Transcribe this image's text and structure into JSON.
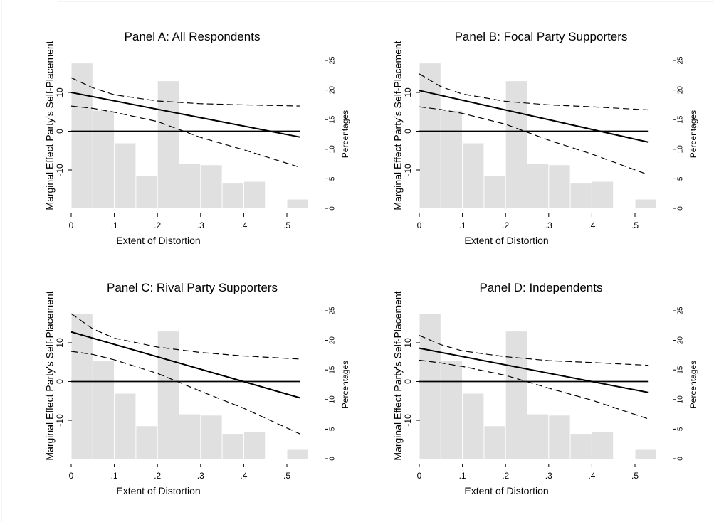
{
  "chart_data": [
    {
      "type": "line",
      "title": "Panel A: All Respondents",
      "xlabel": "Extent of Distortion",
      "ylabel": "Marginal Effect Party's Self-Placement",
      "y2label": "Percentages",
      "xlim": [
        0,
        0.55
      ],
      "ylim": [
        -20,
        18.5
      ],
      "y2lim": [
        0,
        25
      ],
      "x_ticks": [
        0,
        0.1,
        0.2,
        0.3,
        0.4,
        0.5
      ],
      "x_tick_labels": [
        "0",
        ".1",
        ".2",
        ".3",
        ".4",
        ".5"
      ],
      "y_ticks": [
        10,
        0,
        -10
      ],
      "y_tick_labels": [
        "10",
        "0",
        "-10"
      ],
      "y2_ticks": [
        0,
        5,
        10,
        15,
        20,
        25
      ],
      "y2_tick_labels": [
        "0",
        "5",
        "10",
        "15",
        "20",
        "25"
      ],
      "histogram": {
        "bins": [
          [
            0,
            0.05
          ],
          [
            0.05,
            0.1
          ],
          [
            0.1,
            0.15
          ],
          [
            0.15,
            0.2
          ],
          [
            0.2,
            0.25
          ],
          [
            0.25,
            0.3
          ],
          [
            0.3,
            0.35
          ],
          [
            0.35,
            0.4
          ],
          [
            0.4,
            0.45
          ],
          [
            0.5,
            0.55
          ]
        ],
        "percent": [
          24.5,
          16.5,
          11,
          5.5,
          21.5,
          7.5,
          7.3,
          4.2,
          4.5,
          1.5
        ]
      },
      "series": [
        {
          "style": "solid",
          "x": [
            0,
            0.53
          ],
          "y": [
            10,
            -1.5
          ]
        },
        {
          "style": "dashed",
          "x": [
            0,
            0.05,
            0.1,
            0.2,
            0.3,
            0.4,
            0.53
          ],
          "y": [
            13.8,
            11.2,
            9.4,
            7.8,
            7.1,
            6.8,
            6.5
          ]
        },
        {
          "style": "dashed",
          "x": [
            0,
            0.05,
            0.1,
            0.2,
            0.3,
            0.4,
            0.53
          ],
          "y": [
            6.5,
            5.9,
            4.9,
            2.5,
            -1.6,
            -4.8,
            -9.3
          ]
        }
      ],
      "reference_line": 0
    },
    {
      "type": "line",
      "title": "Panel B: Focal Party Supporters",
      "xlabel": "Extent of Distortion",
      "ylabel": "Marginal Effect Party's Self-Placement",
      "y2label": "Percentages",
      "xlim": [
        0,
        0.55
      ],
      "ylim": [
        -20,
        18.5
      ],
      "y2lim": [
        0,
        25
      ],
      "x_ticks": [
        0,
        0.1,
        0.2,
        0.3,
        0.4,
        0.5
      ],
      "x_tick_labels": [
        "0",
        ".1",
        ".2",
        ".3",
        ".4",
        ".5"
      ],
      "y_ticks": [
        10,
        0,
        -10
      ],
      "y_tick_labels": [
        "10",
        "0",
        "-10"
      ],
      "y2_ticks": [
        0,
        5,
        10,
        15,
        20,
        25
      ],
      "y2_tick_labels": [
        "0",
        "5",
        "10",
        "15",
        "20",
        "25"
      ],
      "histogram": {
        "bins": [
          [
            0,
            0.05
          ],
          [
            0.05,
            0.1
          ],
          [
            0.1,
            0.15
          ],
          [
            0.15,
            0.2
          ],
          [
            0.2,
            0.25
          ],
          [
            0.25,
            0.3
          ],
          [
            0.3,
            0.35
          ],
          [
            0.35,
            0.4
          ],
          [
            0.4,
            0.45
          ],
          [
            0.5,
            0.55
          ]
        ],
        "percent": [
          24.5,
          16.5,
          11,
          5.5,
          21.5,
          7.5,
          7.3,
          4.2,
          4.5,
          1.5
        ]
      },
      "series": [
        {
          "style": "solid",
          "x": [
            0,
            0.53
          ],
          "y": [
            10.5,
            -2.8
          ]
        },
        {
          "style": "dashed",
          "x": [
            0,
            0.05,
            0.1,
            0.2,
            0.3,
            0.4,
            0.53
          ],
          "y": [
            14.8,
            11.5,
            9.6,
            7.7,
            6.8,
            6.3,
            5.5
          ]
        },
        {
          "style": "dashed",
          "x": [
            0,
            0.05,
            0.1,
            0.2,
            0.3,
            0.4,
            0.53
          ],
          "y": [
            6.3,
            5.6,
            4.6,
            1.8,
            -2.3,
            -5.9,
            -11.2
          ]
        }
      ],
      "reference_line": 0
    },
    {
      "type": "line",
      "title": "Panel C: Rival Party Supporters",
      "xlabel": "Extent of Distortion",
      "ylabel": "Marginal Effect Party's Self-Placement",
      "y2label": "Percentages",
      "xlim": [
        0,
        0.55
      ],
      "ylim": [
        -20,
        18.5
      ],
      "y2lim": [
        0,
        25
      ],
      "x_ticks": [
        0,
        0.1,
        0.2,
        0.3,
        0.4,
        0.5
      ],
      "x_tick_labels": [
        "0",
        ".1",
        ".2",
        ".3",
        ".4",
        ".5"
      ],
      "y_ticks": [
        10,
        0,
        -10
      ],
      "y_tick_labels": [
        "10",
        "0",
        "-10"
      ],
      "y2_ticks": [
        0,
        5,
        10,
        15,
        20,
        25
      ],
      "y2_tick_labels": [
        "0",
        "5",
        "10",
        "15",
        "20",
        "25"
      ],
      "histogram": {
        "bins": [
          [
            0,
            0.05
          ],
          [
            0.05,
            0.1
          ],
          [
            0.1,
            0.15
          ],
          [
            0.15,
            0.2
          ],
          [
            0.2,
            0.25
          ],
          [
            0.25,
            0.3
          ],
          [
            0.3,
            0.35
          ],
          [
            0.35,
            0.4
          ],
          [
            0.4,
            0.45
          ],
          [
            0.5,
            0.55
          ]
        ],
        "percent": [
          24.5,
          16.5,
          11,
          5.5,
          21.5,
          7.5,
          7.3,
          4.2,
          4.5,
          1.5
        ]
      },
      "series": [
        {
          "style": "solid",
          "x": [
            0,
            0.53
          ],
          "y": [
            12.8,
            -4.2
          ]
        },
        {
          "style": "dashed",
          "x": [
            0,
            0.05,
            0.1,
            0.2,
            0.3,
            0.4,
            0.53
          ],
          "y": [
            17.5,
            13.6,
            11.2,
            8.9,
            7.5,
            6.6,
            5.8
          ]
        },
        {
          "style": "dashed",
          "x": [
            0,
            0.05,
            0.1,
            0.2,
            0.3,
            0.4,
            0.53
          ],
          "y": [
            7.8,
            7.0,
            5.6,
            2.1,
            -2.5,
            -6.9,
            -13.5
          ]
        }
      ],
      "reference_line": 0
    },
    {
      "type": "line",
      "title": "Panel D: Independents",
      "xlabel": "Extent of Distortion",
      "ylabel": "Marginal Effect Party's Self-Placement",
      "y2label": "Percentages",
      "xlim": [
        0,
        0.55
      ],
      "ylim": [
        -20,
        18.5
      ],
      "y2lim": [
        0,
        25
      ],
      "x_ticks": [
        0,
        0.1,
        0.2,
        0.3,
        0.4,
        0.5
      ],
      "x_tick_labels": [
        "0",
        ".1",
        ".2",
        ".3",
        ".4",
        ".5"
      ],
      "y_ticks": [
        10,
        0,
        -10
      ],
      "y_tick_labels": [
        "10",
        "0",
        "-10"
      ],
      "y2_ticks": [
        0,
        5,
        10,
        15,
        20,
        25
      ],
      "y2_tick_labels": [
        "0",
        "5",
        "10",
        "15",
        "20",
        "25"
      ],
      "histogram": {
        "bins": [
          [
            0,
            0.05
          ],
          [
            0.05,
            0.1
          ],
          [
            0.1,
            0.15
          ],
          [
            0.15,
            0.2
          ],
          [
            0.2,
            0.25
          ],
          [
            0.25,
            0.3
          ],
          [
            0.3,
            0.35
          ],
          [
            0.35,
            0.4
          ],
          [
            0.4,
            0.45
          ],
          [
            0.5,
            0.55
          ]
        ],
        "percent": [
          24.5,
          16.5,
          11,
          5.5,
          21.5,
          7.5,
          7.3,
          4.2,
          4.5,
          1.5
        ]
      },
      "series": [
        {
          "style": "solid",
          "x": [
            0,
            0.53
          ],
          "y": [
            8.6,
            -2.8
          ]
        },
        {
          "style": "dashed",
          "x": [
            0,
            0.05,
            0.1,
            0.2,
            0.3,
            0.4,
            0.53
          ],
          "y": [
            11.9,
            9.5,
            7.9,
            6.4,
            5.4,
            4.9,
            4.2
          ]
        },
        {
          "style": "dashed",
          "x": [
            0,
            0.05,
            0.1,
            0.2,
            0.3,
            0.4,
            0.53
          ],
          "y": [
            5.5,
            4.8,
            3.9,
            1.6,
            -1.7,
            -4.8,
            -9.6
          ]
        }
      ],
      "reference_line": 0
    }
  ]
}
